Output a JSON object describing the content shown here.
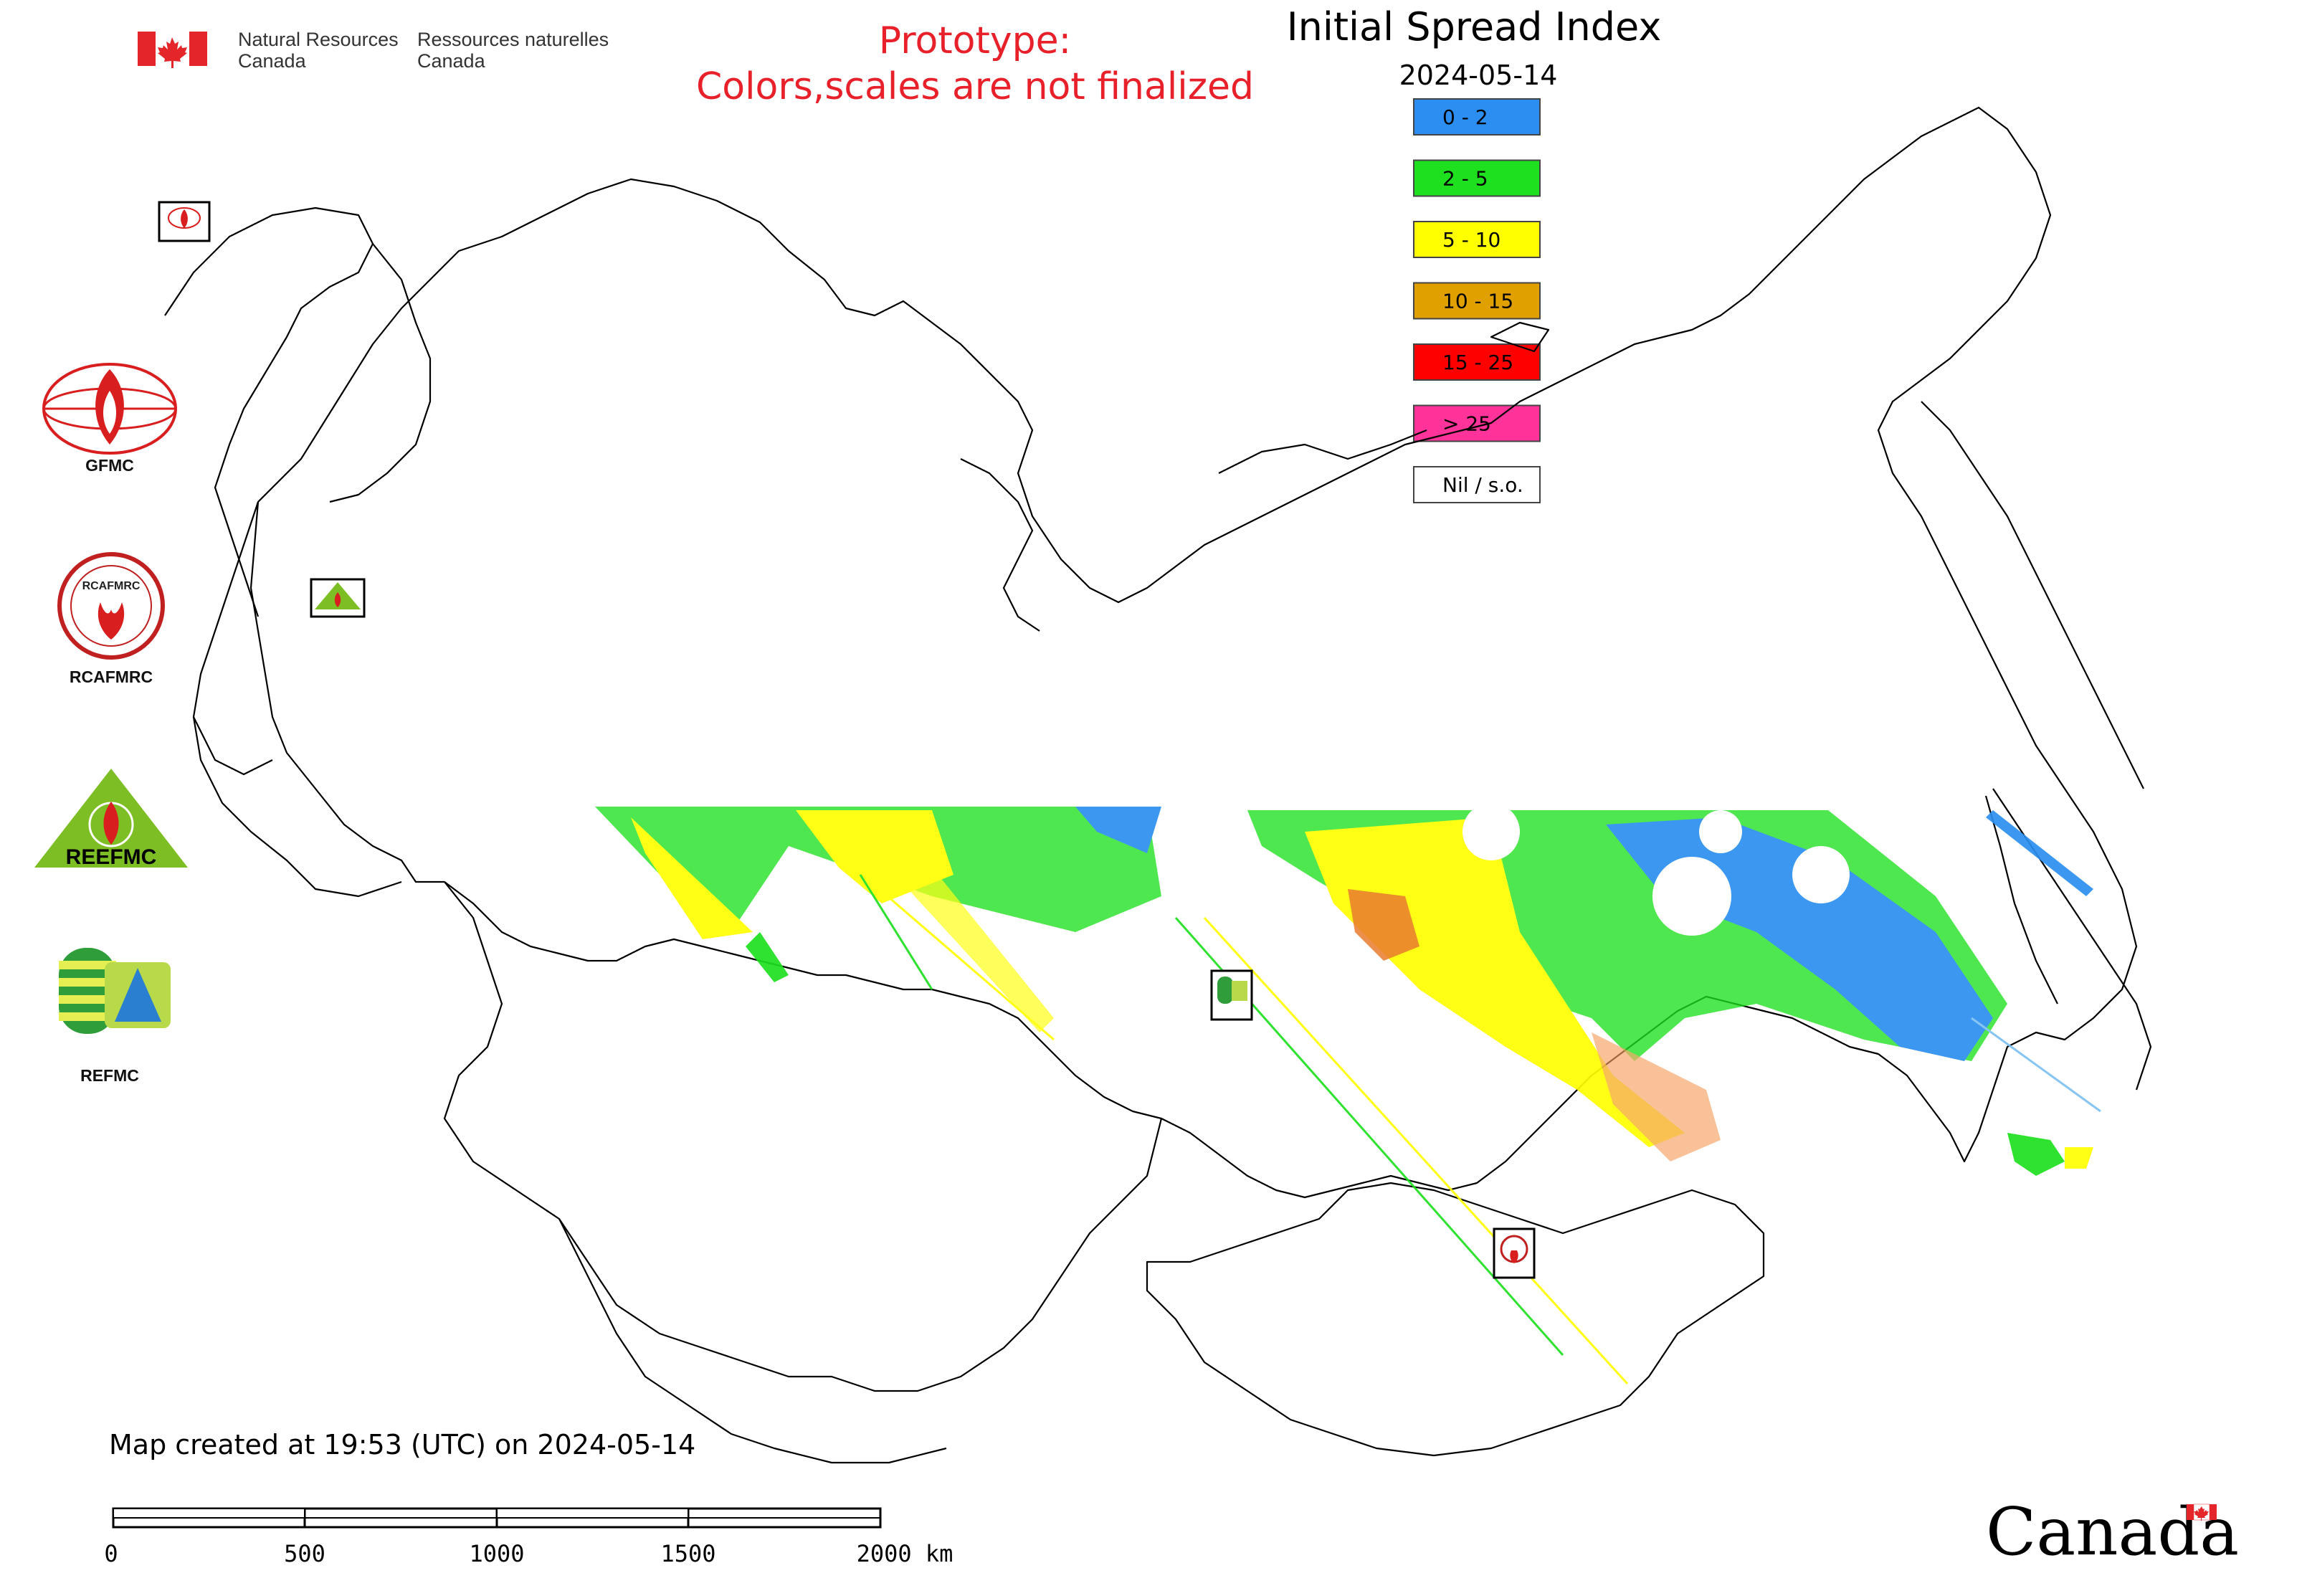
{
  "header": {
    "agency_en_line1": "Natural Resources",
    "agency_en_line2": "Canada",
    "agency_fr_line1": "Ressources naturelles",
    "agency_fr_line2": "Canada",
    "prototype_line1": "Prototype:",
    "prototype_line2": "Colors,scales are not finalized",
    "prototype_color": "#e8202a"
  },
  "map": {
    "title": "Initial Spread Index",
    "date": "2024-05-14",
    "legend": [
      {
        "label": "0 - 2",
        "color": "#2b8ef0"
      },
      {
        "label": "2 - 5",
        "color": "#1ee01e"
      },
      {
        "label": "5 - 10",
        "color": "#ffff00"
      },
      {
        "label": "10 - 15",
        "color": "#e0a000"
      },
      {
        "label": "15 - 25",
        "color": "#ff0000"
      },
      {
        "label": "> 25",
        "color": "#ff3399"
      },
      {
        "label": "Nil / s.o.",
        "color": "#ffffff"
      }
    ]
  },
  "logos": {
    "gfmc": "GFMC",
    "rcafmrc": "RCAFMRC",
    "reefmc": "REEFMC",
    "refmc": "REFMC",
    "rcafmrc_badge": "RCAFMRC",
    "reefmc_ring": "REEFMC"
  },
  "footer": {
    "created": "Map created at 19:53 (UTC) on 2024-05-14",
    "scale_ticks": [
      "0",
      "500",
      "1000",
      "1500",
      "2000 km"
    ],
    "wordmark": "Canada"
  }
}
